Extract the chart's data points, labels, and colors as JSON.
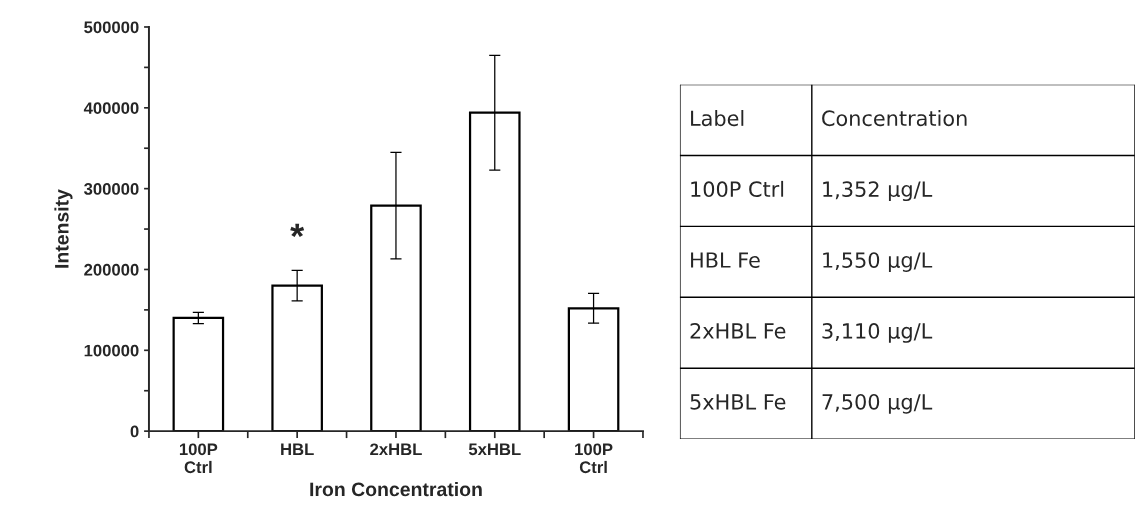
{
  "chart_data": [
    {
      "type": "bar",
      "xlabel": "Iron Concentration",
      "ylabel": "Intensity",
      "categories": [
        "100P\nCtrl",
        "HBL",
        "2xHBL",
        "5xHBL",
        "100P\nCtrl"
      ],
      "values": [
        140000,
        180000,
        279000,
        394000,
        152000
      ],
      "errors": [
        7000,
        19000,
        66000,
        71000,
        18500
      ],
      "color": "#ffffff",
      "ylim": [
        0,
        500000
      ],
      "yticks": [
        0,
        {
          "value": 50000,
          "label": null
        },
        100000,
        {
          "value": 150000,
          "label": null
        },
        200000,
        {
          "value": 250000,
          "label": null
        },
        300000,
        {
          "value": 350000,
          "label": null
        },
        400000,
        {
          "value": 450000,
          "label": null
        },
        500000
      ],
      "annotations": [
        "*"
      ],
      "grid": false,
      "legend": false
    },
    {
      "type": "other",
      "annotations": [
        "Label",
        "Concentration",
        "100P Ctrl",
        "1,352 µg/L",
        "HBL Fe",
        "1,550 µg/L",
        "2xHBL Fe",
        "3,110 µg/L",
        "5xHBL Fe",
        "7,500 µg/L"
      ]
    }
  ]
}
